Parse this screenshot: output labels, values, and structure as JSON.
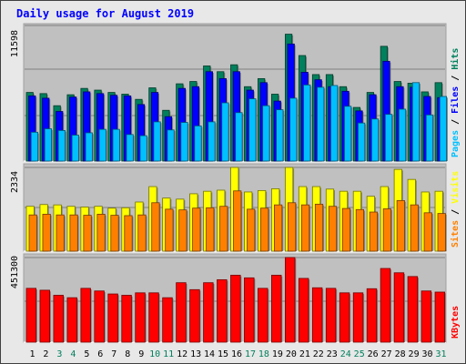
{
  "chart_data": [
    {
      "type": "bar",
      "title": "Daily usage for August 2019",
      "categories": [
        "1",
        "2",
        "3",
        "4",
        "5",
        "6",
        "7",
        "8",
        "9",
        "10",
        "11",
        "12",
        "13",
        "14",
        "15",
        "16",
        "17",
        "18",
        "19",
        "20",
        "21",
        "22",
        "23",
        "24",
        "25",
        "26",
        "27",
        "28",
        "29",
        "30",
        "31"
      ],
      "weekend_days": [
        "3",
        "4",
        "10",
        "11",
        "17",
        "18",
        "24",
        "25",
        "31"
      ],
      "y_label": "11598",
      "ylim": [
        0,
        11598
      ],
      "series": [
        {
          "name": "Hits",
          "color": "#00805c",
          "values": [
            5950,
            5850,
            4800,
            5750,
            6300,
            6150,
            5950,
            5800,
            5350,
            6350,
            4400,
            6700,
            6900,
            8250,
            7750,
            8350,
            6450,
            7150,
            5800,
            11000,
            9150,
            7500,
            7500,
            6450,
            4650,
            5950,
            9950,
            6900,
            6750,
            6000,
            6800
          ]
        },
        {
          "name": "Files",
          "color": "#0000ff",
          "values": [
            5650,
            5450,
            4300,
            5550,
            6000,
            5850,
            5700,
            5650,
            4900,
            5950,
            3850,
            6300,
            6450,
            7750,
            7150,
            7750,
            6150,
            6800,
            5200,
            10150,
            7700,
            7050,
            6450,
            6050,
            4350,
            5750,
            8650,
            6450,
            6400,
            5600,
            5500
          ]
        },
        {
          "name": "Pages",
          "color": "#00c0ff",
          "values": [
            2500,
            2800,
            2650,
            2250,
            2450,
            2750,
            2750,
            2300,
            2200,
            3400,
            2700,
            3350,
            3050,
            3400,
            5050,
            4200,
            5400,
            4800,
            4450,
            5450,
            6600,
            6400,
            6550,
            4750,
            3300,
            3650,
            4050,
            4500,
            6800,
            4000,
            5600
          ]
        }
      ]
    },
    {
      "type": "bar",
      "categories": [
        "1",
        "2",
        "3",
        "4",
        "5",
        "6",
        "7",
        "8",
        "9",
        "10",
        "11",
        "12",
        "13",
        "14",
        "15",
        "16",
        "17",
        "18",
        "19",
        "20",
        "21",
        "22",
        "23",
        "24",
        "25",
        "26",
        "27",
        "28",
        "29",
        "30",
        "31"
      ],
      "y_label": "2334",
      "ylim": [
        0,
        2334
      ],
      "series": [
        {
          "name": "Visits",
          "color": "#ffff00",
          "values": [
            1250,
            1300,
            1290,
            1250,
            1230,
            1250,
            1200,
            1210,
            1370,
            1800,
            1480,
            1450,
            1600,
            1670,
            1700,
            2334,
            1650,
            1690,
            1740,
            2334,
            1800,
            1800,
            1730,
            1670,
            1670,
            1530,
            1800,
            2280,
            2000,
            1650,
            1670
          ]
        },
        {
          "name": "Sites",
          "color": "#ff8000",
          "values": [
            1010,
            1030,
            1010,
            1010,
            1000,
            1030,
            1000,
            990,
            1010,
            1350,
            1170,
            1150,
            1200,
            1210,
            1250,
            1680,
            1170,
            1200,
            1290,
            1350,
            1290,
            1310,
            1250,
            1190,
            1160,
            1090,
            1180,
            1410,
            1290,
            1070,
            1050
          ]
        }
      ]
    },
    {
      "type": "bar",
      "categories": [
        "1",
        "2",
        "3",
        "4",
        "5",
        "6",
        "7",
        "8",
        "9",
        "10",
        "11",
        "12",
        "13",
        "14",
        "15",
        "16",
        "17",
        "18",
        "19",
        "20",
        "21",
        "22",
        "23",
        "24",
        "25",
        "26",
        "27",
        "28",
        "29",
        "30",
        "31"
      ],
      "y_label": "451300",
      "ylim": [
        0,
        451300
      ],
      "series": [
        {
          "name": "KBytes",
          "color": "#ff0000",
          "values": [
            287000,
            277000,
            250000,
            237000,
            287000,
            273000,
            257000,
            250000,
            263000,
            263000,
            237000,
            317000,
            280000,
            317000,
            333000,
            357000,
            343000,
            287000,
            357000,
            451300,
            340000,
            290000,
            287000,
            263000,
            263000,
            285000,
            393000,
            370000,
            350000,
            273000,
            267000
          ]
        }
      ]
    }
  ],
  "colors": {
    "background": "#e8e8e8",
    "panel": "#c0c0c0",
    "title": "#0000ff",
    "grid": "#808080",
    "weekend_label": "#00805c",
    "weekday_label": "#000000"
  }
}
